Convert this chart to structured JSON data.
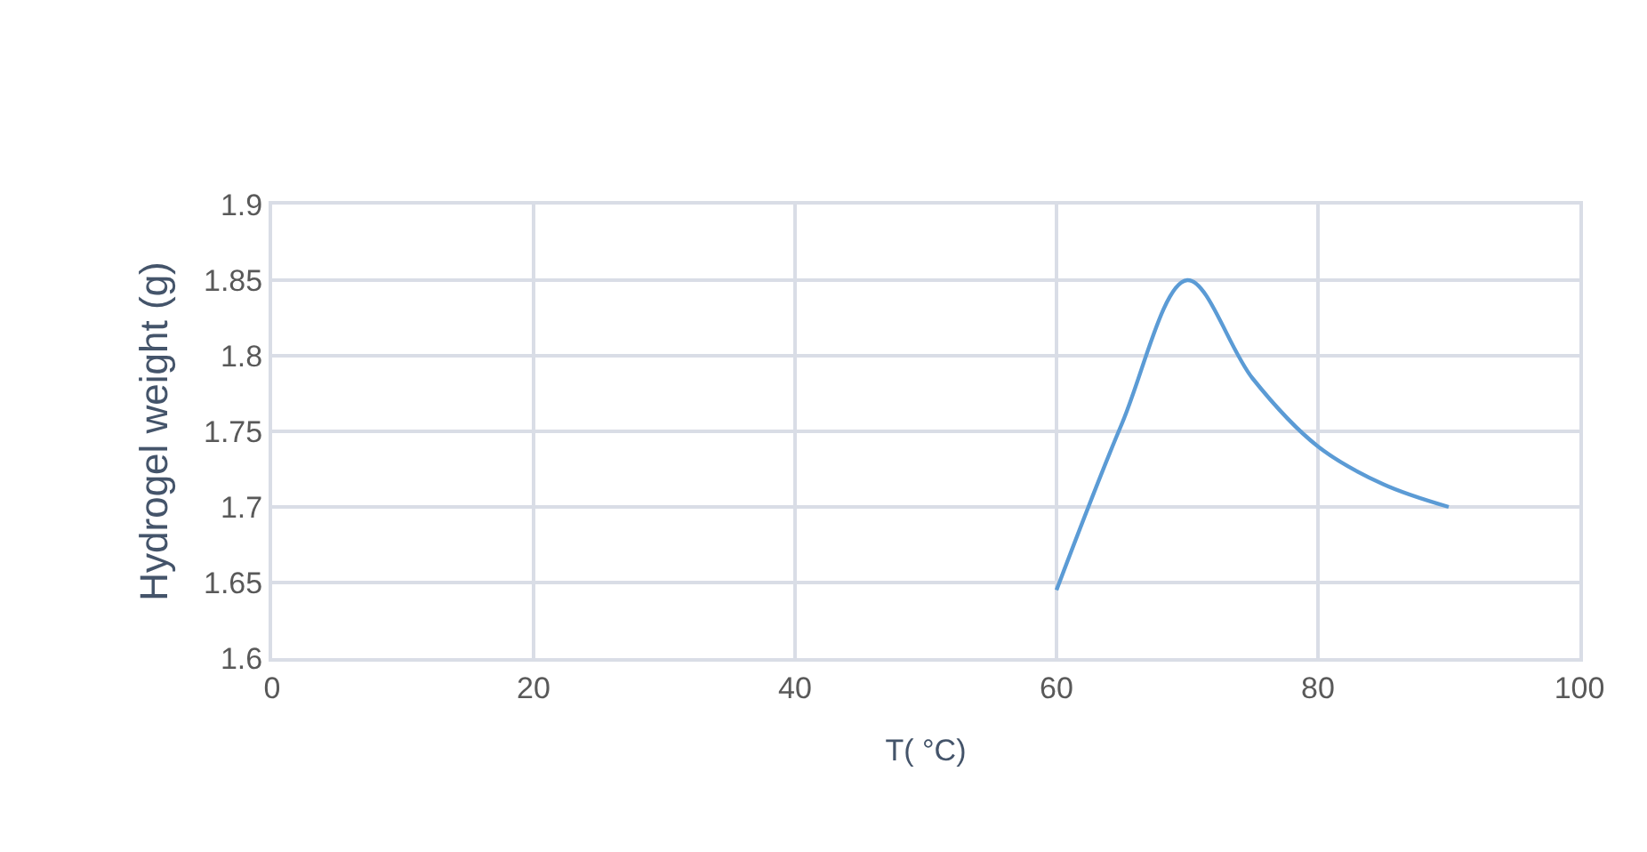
{
  "chart_data": {
    "type": "line",
    "xlabel": "T( °C)",
    "ylabel": "Hydrogel weight (g)",
    "x": [
      60,
      65,
      70,
      75,
      80,
      85,
      90
    ],
    "series": [
      {
        "color": "#5b9bd5",
        "values": [
          1.645,
          1.755,
          1.85,
          1.785,
          1.74,
          1.715,
          1.7
        ]
      }
    ],
    "xlim": [
      0,
      100
    ],
    "xticks": [
      0,
      20,
      40,
      60,
      80,
      100
    ],
    "ylim": [
      1.6,
      1.9
    ],
    "yticks": [
      1.6,
      1.65,
      1.7,
      1.75,
      1.8,
      1.85,
      1.9
    ],
    "grid": true,
    "marker": "none",
    "line_style": "solid"
  }
}
